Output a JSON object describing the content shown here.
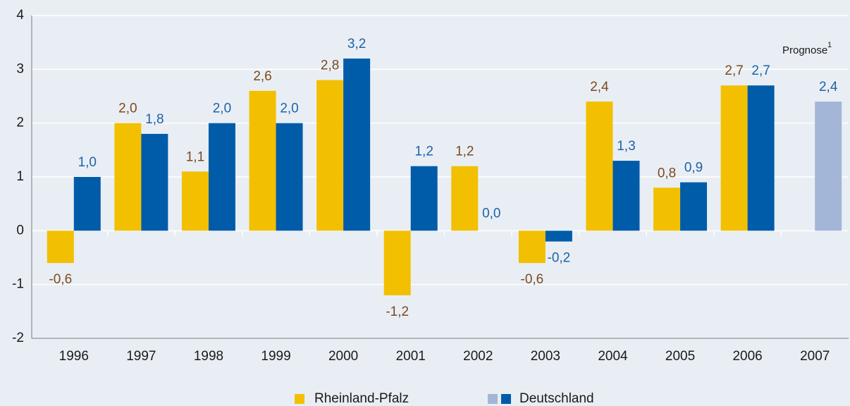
{
  "chart_data": {
    "type": "bar",
    "categories": [
      "1996",
      "1997",
      "1998",
      "1999",
      "2000",
      "2001",
      "2002",
      "2003",
      "2004",
      "2005",
      "2006",
      "2007"
    ],
    "series": [
      {
        "name": "Rheinland-Pfalz",
        "color": "#f2c000",
        "label_color": "#7b4a1f",
        "values": [
          -0.6,
          2.0,
          1.1,
          2.6,
          2.8,
          -1.2,
          1.2,
          -0.6,
          2.4,
          0.8,
          2.7,
          null
        ],
        "value_labels": [
          "-0,6",
          "2,0",
          "1,1",
          "2,6",
          "2,8",
          "-1,2",
          "1,2",
          "-0,6",
          "2,4",
          "0,8",
          "2,7",
          null
        ],
        "colors": [
          "#f2c000",
          "#f2c000",
          "#f2c000",
          "#f2c000",
          "#f2c000",
          "#f2c000",
          "#f2c000",
          "#f2c000",
          "#f2c000",
          "#f2c000",
          "#f2c000",
          "#f2c000"
        ]
      },
      {
        "name": "Deutschland",
        "color": "#005ca9",
        "label_color": "#1b63a8",
        "values": [
          1.0,
          1.8,
          2.0,
          2.0,
          3.2,
          1.2,
          0.0,
          -0.2,
          1.3,
          0.9,
          2.7,
          2.4
        ],
        "value_labels": [
          "1,0",
          "1,8",
          "2,0",
          "2,0",
          "3,2",
          "1,2",
          "0,0",
          "-0,2",
          "1,3",
          "0,9",
          "2,7",
          "2,4"
        ],
        "colors": [
          "#005ca9",
          "#005ca9",
          "#005ca9",
          "#005ca9",
          "#005ca9",
          "#005ca9",
          "#005ca9",
          "#005ca9",
          "#005ca9",
          "#005ca9",
          "#005ca9",
          "#a3b6d7"
        ]
      }
    ],
    "annotation": {
      "text": "Prognose",
      "superscript": "1"
    },
    "ylim": [
      -2,
      4
    ],
    "yticks": [
      -2,
      -1,
      0,
      1,
      2,
      3,
      4
    ],
    "grid": true
  }
}
